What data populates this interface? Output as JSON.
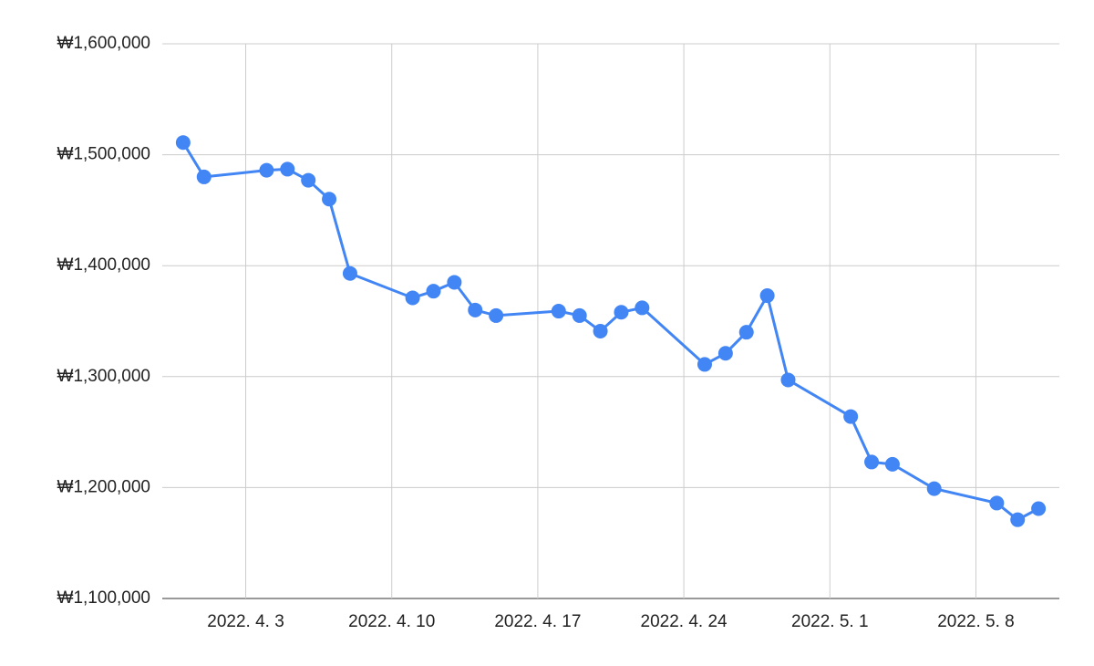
{
  "chart_data": {
    "type": "line",
    "x": [
      "2022-03-31",
      "2022-04-01",
      "2022-04-04",
      "2022-04-05",
      "2022-04-06",
      "2022-04-07",
      "2022-04-08",
      "2022-04-11",
      "2022-04-12",
      "2022-04-13",
      "2022-04-14",
      "2022-04-15",
      "2022-04-18",
      "2022-04-19",
      "2022-04-20",
      "2022-04-21",
      "2022-04-22",
      "2022-04-25",
      "2022-04-26",
      "2022-04-27",
      "2022-04-28",
      "2022-04-29",
      "2022-05-02",
      "2022-05-03",
      "2022-05-04",
      "2022-05-06",
      "2022-05-09",
      "2022-05-10",
      "2022-05-11"
    ],
    "series": [
      {
        "color": "#4285f4",
        "values": [
          1511000,
          1480000,
          1486000,
          1487000,
          1477000,
          1460000,
          1393000,
          1371000,
          1377000,
          1385000,
          1360000,
          1355000,
          1359000,
          1355000,
          1341000,
          1358000,
          1362000,
          1311000,
          1321000,
          1340000,
          1373000,
          1297000,
          1264000,
          1223000,
          1221000,
          1199000,
          1186000,
          1171000,
          1181000
        ]
      }
    ],
    "xlim": [
      "2022-03-30",
      "2022-05-12"
    ],
    "xticks": [
      {
        "value": "2022-04-03",
        "label": "2022. 4. 3"
      },
      {
        "value": "2022-04-10",
        "label": "2022. 4. 10"
      },
      {
        "value": "2022-04-17",
        "label": "2022. 4. 17"
      },
      {
        "value": "2022-04-24",
        "label": "2022. 4. 24"
      },
      {
        "value": "2022-05-01",
        "label": "2022. 5. 1"
      },
      {
        "value": "2022-05-08",
        "label": "2022. 5. 8"
      }
    ],
    "ylim": [
      1100000,
      1600000
    ],
    "yticks": [
      {
        "value": 1100000,
        "label": "₩1,100,000"
      },
      {
        "value": 1200000,
        "label": "₩1,200,000"
      },
      {
        "value": 1300000,
        "label": "₩1,300,000"
      },
      {
        "value": 1400000,
        "label": "₩1,400,000"
      },
      {
        "value": 1500000,
        "label": "₩1,500,000"
      },
      {
        "value": 1600000,
        "label": "₩1,600,000"
      }
    ],
    "grid": true
  }
}
